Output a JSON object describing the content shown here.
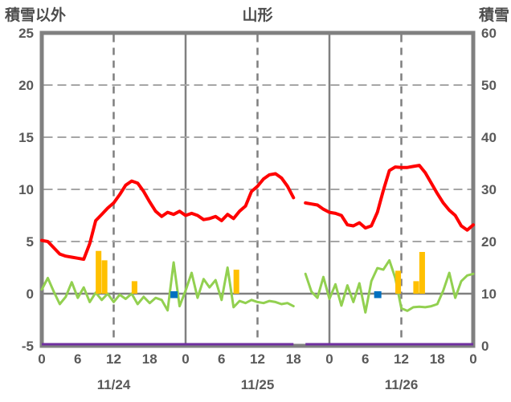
{
  "titles": {
    "left": "積雪以外",
    "center": "山形",
    "right": "積雪"
  },
  "colors": {
    "background": "#ffffff",
    "frame": "#808080",
    "grid_vertical_solid": "#808080",
    "grid_vertical_dashed": "#7f7f7f",
    "grid_horizontal_dashed": "#a6a6a6",
    "zero_line": "#808080",
    "axis_text": "#595959",
    "title_text": "#4d4d4d",
    "red_series": "#FF0000",
    "green_series": "#92D050",
    "purple_series": "#7030A0",
    "orange_series": "#FFC000",
    "blue_series": "#0070C0"
  },
  "chart_data": {
    "type": "line",
    "title": "山形",
    "x_axis": {
      "unit": "hour",
      "total_hours": 72,
      "tick_hours": [
        0,
        6,
        12,
        18,
        24,
        30,
        36,
        42,
        48,
        54,
        60,
        66,
        72
      ],
      "tick_labels": [
        "0",
        "6",
        "12",
        "18",
        "0",
        "6",
        "12",
        "18",
        "0",
        "6",
        "12",
        "18",
        "0"
      ],
      "day_labels": [
        "11/24",
        "11/25",
        "11/26"
      ],
      "day_label_center_hours": [
        12,
        36,
        60
      ],
      "solid_gridlines_at_hours": [
        24,
        48
      ],
      "dashed_gridlines_at_hours": [
        12,
        36,
        60
      ]
    },
    "left_axis": {
      "title": "積雪以外",
      "min": -5,
      "max": 25,
      "tick_values": [
        25,
        20,
        15,
        10,
        5,
        0,
        -5
      ],
      "tick_labels": [
        "25",
        "20",
        "15",
        "10",
        "5",
        "0",
        "-5"
      ],
      "dashed_gridlines_at": [
        20,
        15,
        10,
        5
      ],
      "zero_line_at": 0
    },
    "right_axis": {
      "title": "積雪",
      "min": 0,
      "max": 60,
      "tick_values": [
        60,
        50,
        40,
        30,
        20,
        10,
        0
      ],
      "tick_labels": [
        "60",
        "50",
        "40",
        "30",
        "20",
        "10",
        "0"
      ]
    },
    "legend": "none",
    "data_gap_hours": [
      43
    ],
    "series": [
      {
        "id": "red-line",
        "type": "line",
        "axis": "left",
        "color": "#FF0000",
        "stroke_width": 4,
        "hourly_values": [
          5.1,
          5.0,
          4.4,
          3.8,
          3.6,
          3.5,
          3.4,
          3.3,
          4.8,
          7.0,
          7.6,
          8.2,
          8.7,
          9.5,
          10.4,
          10.8,
          10.6,
          9.8,
          8.8,
          7.9,
          7.4,
          7.8,
          7.6,
          7.9,
          7.5,
          7.7,
          7.5,
          7.1,
          7.2,
          7.4,
          7.0,
          7.6,
          7.2,
          7.9,
          8.4,
          9.8,
          10.3,
          11.0,
          11.4,
          11.5,
          11.1,
          10.3,
          9.2,
          null,
          8.7,
          8.6,
          8.5,
          8.1,
          7.8,
          7.7,
          7.5,
          6.6,
          6.5,
          6.8,
          6.3,
          6.5,
          7.8,
          9.9,
          11.8,
          12.15,
          12.1,
          12.1,
          12.2,
          12.3,
          11.6,
          10.6,
          9.6,
          8.7,
          8.0,
          7.5,
          6.5,
          6.1,
          6.6
        ]
      },
      {
        "id": "green-line",
        "type": "line",
        "axis": "left",
        "color": "#92D050",
        "stroke_width": 3,
        "hourly_values": [
          0.4,
          1.5,
          0.2,
          -1.0,
          -0.3,
          1.1,
          -0.4,
          0.6,
          -0.8,
          0.1,
          -0.6,
          0.0,
          -0.8,
          -0.1,
          -0.5,
          0.0,
          -1.0,
          -0.3,
          -0.9,
          -0.4,
          -0.6,
          -1.6,
          3.0,
          -1.2,
          0.3,
          2.0,
          -0.4,
          1.4,
          0.6,
          1.3,
          -0.6,
          2.5,
          -1.3,
          -0.7,
          -0.9,
          -0.6,
          -0.8,
          -0.9,
          -0.7,
          -0.8,
          -1.0,
          -0.9,
          -1.2,
          null,
          1.9,
          0.2,
          -0.4,
          1.6,
          -0.5,
          0.9,
          -1.15,
          0.8,
          -0.8,
          1.0,
          -1.8,
          1.2,
          2.45,
          2.3,
          3.2,
          1.5,
          -1.4,
          -1.65,
          -1.3,
          -1.25,
          -1.3,
          -1.2,
          -1.0,
          0.3,
          2.0,
          -0.4,
          1.2,
          1.75,
          1.9
        ]
      },
      {
        "id": "purple-line",
        "type": "line",
        "axis": "right",
        "color": "#7030A0",
        "stroke_width": 3,
        "hourly_values": [
          0,
          0,
          0,
          0,
          0,
          0,
          0,
          0,
          0,
          0,
          0,
          0,
          0,
          0,
          0,
          0,
          0,
          0,
          0,
          0,
          0,
          0,
          0,
          0,
          0,
          0,
          0,
          0,
          0,
          0,
          0,
          0,
          0,
          0,
          0,
          0,
          0,
          0,
          0,
          0,
          0,
          0,
          0,
          null,
          0,
          0,
          0,
          0,
          0,
          0,
          0,
          0,
          0,
          0,
          0,
          0,
          0,
          0,
          0,
          0,
          0,
          0,
          0,
          0,
          0,
          0,
          0,
          0,
          0,
          0,
          0,
          0,
          0
        ]
      },
      {
        "id": "orange-bars",
        "type": "bar",
        "axis": "left",
        "color": "#FFC000",
        "bars": [
          {
            "hour": 9,
            "value": 4.1
          },
          {
            "hour": 10,
            "value": 3.2
          },
          {
            "hour": 15,
            "value": 1.2
          },
          {
            "hour": 32,
            "value": 2.3
          },
          {
            "hour": 59,
            "value": 2.2
          },
          {
            "hour": 62,
            "value": 1.2
          },
          {
            "hour": 63,
            "value": 4.0
          }
        ]
      },
      {
        "id": "blue-bars",
        "type": "bar",
        "axis": "left",
        "color": "#0070C0",
        "style": "small-square-at-zero",
        "bars": [
          {
            "hour": 22,
            "value": 0.5
          },
          {
            "hour": 56,
            "value": 0.5
          }
        ]
      }
    ]
  }
}
